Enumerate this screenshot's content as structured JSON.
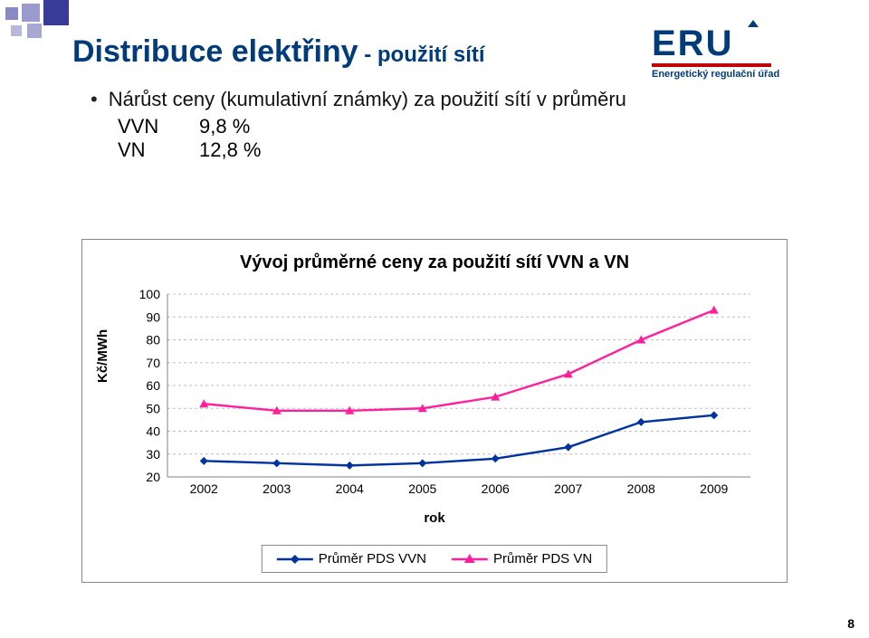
{
  "corner_colors": {
    "sq1": "#8a8ac2",
    "sq2": "#9a9acc",
    "sq3": "#3a3a99",
    "sq4": "#b8b8d9",
    "sq5": "#a8a8d0"
  },
  "logo": {
    "line1": "ERU",
    "line2": "Energetický regulační úřad",
    "text_color": "#003b7a",
    "bar_color": "#c00000"
  },
  "title_main": "Distribuce elektřiny",
  "title_suffix": " - použití sítí",
  "bullet_text": "Nárůst ceny (kumulativní známky) za použití sítí v průměru",
  "indent": {
    "row1_label": "VVN",
    "row1_value": "9,8 %",
    "row2_label": "VN",
    "row2_value": "12,8 %"
  },
  "chart": {
    "type": "line",
    "title": "Vývoj průměrné ceny za použití sítí VVN a VN",
    "ylabel": "Kč/MWh",
    "xlabel": "rok",
    "years": [
      "2002",
      "2003",
      "2004",
      "2005",
      "2006",
      "2007",
      "2008",
      "2009"
    ],
    "ylim": [
      20,
      100
    ],
    "ytick_step": 10,
    "grid_color": "#c0c0c0",
    "axis_color": "#808080",
    "background_color": "#ffffff",
    "series": [
      {
        "name": "Průměr PDS VVN",
        "legend_label": "Průměr PDS VVN",
        "values": [
          27,
          26,
          25,
          26,
          28,
          33,
          44,
          47
        ],
        "color": "#0033a0",
        "marker": "diamond",
        "marker_size": 9,
        "line_width": 2.4
      },
      {
        "name": "Průměr PDS VN",
        "legend_label": "Průměr PDS VN",
        "values": [
          52,
          49,
          49,
          50,
          55,
          65,
          80,
          93
        ],
        "color": "#ff1f9c",
        "marker": "triangle",
        "marker_size": 10,
        "line_width": 2.4
      }
    ],
    "tick_fontsize": 14,
    "label_fontsize": 15,
    "title_fontsize": 20
  },
  "page_number": "8"
}
